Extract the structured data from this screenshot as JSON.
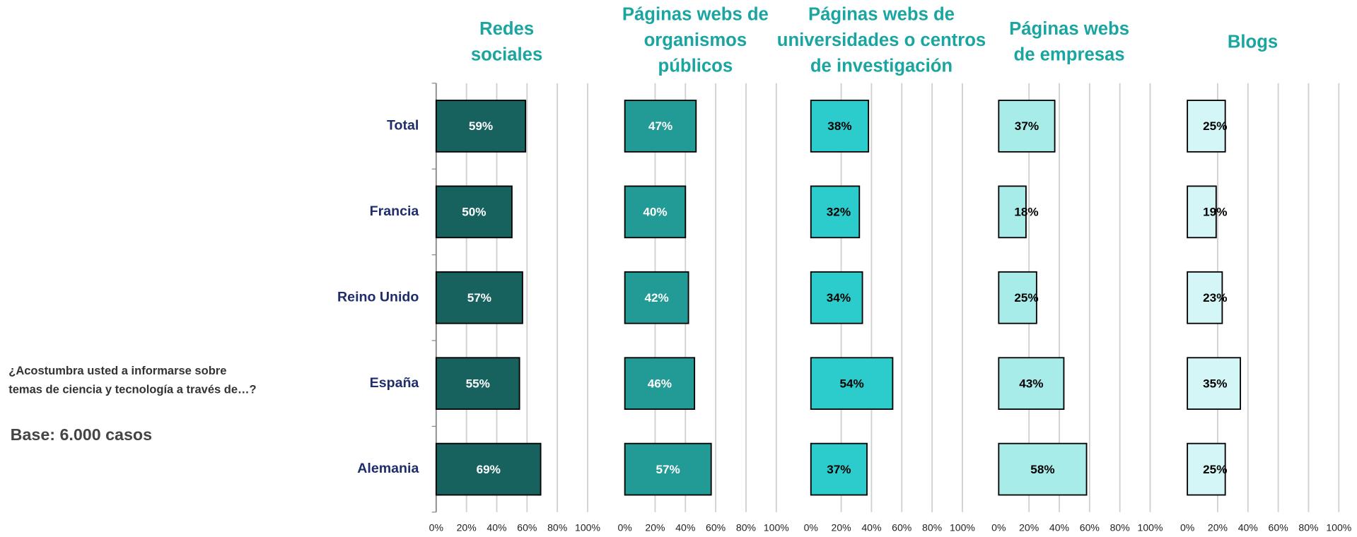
{
  "question": [
    "¿Acostumbra usted a informarse sobre",
    "temas de ciencia y tecnología a través de…?"
  ],
  "base": "Base: 6.000 casos",
  "chart_data": [
    {
      "type": "barh",
      "title": [
        "Redes",
        "sociales"
      ],
      "categories": [
        "Total",
        "Francia",
        "Reino Unido",
        "España",
        "Alemania"
      ],
      "values": [
        59,
        50,
        57,
        55,
        69
      ],
      "value_labels": [
        "59%",
        "50%",
        "57%",
        "55%",
        "69%"
      ],
      "color": "#17615f",
      "label_color": "#ffffff",
      "xlim": [
        0,
        100
      ],
      "xticks": [
        {
          "value": 0,
          "label": "0%"
        },
        {
          "value": 20,
          "label": "20%"
        },
        {
          "value": 40,
          "label": "40%"
        },
        {
          "value": 60,
          "label": "60%"
        },
        {
          "value": 80,
          "label": "80%"
        },
        {
          "value": 100,
          "label": "100%"
        }
      ],
      "grid": true
    },
    {
      "type": "barh",
      "title": [
        "Páginas webs de",
        "organismos",
        "públicos"
      ],
      "values": [
        47,
        40,
        42,
        46,
        57
      ],
      "value_labels": [
        "47%",
        "40%",
        "42%",
        "46%",
        "57%"
      ],
      "color": "#229a96",
      "label_color": "#ffffff",
      "xlim": [
        0,
        100
      ],
      "xticks": [
        {
          "value": 0,
          "label": "0%"
        },
        {
          "value": 20,
          "label": "20%"
        },
        {
          "value": 40,
          "label": "40%"
        },
        {
          "value": 60,
          "label": "60%"
        },
        {
          "value": 80,
          "label": "80%"
        },
        {
          "value": 100,
          "label": "100%"
        }
      ],
      "grid": true
    },
    {
      "type": "barh",
      "title": [
        "Páginas webs de",
        "universidades o centros",
        "de investigación"
      ],
      "values": [
        38,
        32,
        34,
        54,
        37
      ],
      "value_labels": [
        "38%",
        "32%",
        "34%",
        "54%",
        "37%"
      ],
      "color": "#2ccccc",
      "label_color": "#000000",
      "xlim": [
        0,
        100
      ],
      "xticks": [
        {
          "value": 0,
          "label": "0%"
        },
        {
          "value": 20,
          "label": "20%"
        },
        {
          "value": 40,
          "label": "40%"
        },
        {
          "value": 60,
          "label": "60%"
        },
        {
          "value": 80,
          "label": "80%"
        },
        {
          "value": 100,
          "label": "100%"
        }
      ],
      "grid": true
    },
    {
      "type": "barh",
      "title": [
        "Páginas webs",
        "de empresas"
      ],
      "values": [
        37,
        18,
        25,
        43,
        58
      ],
      "value_labels": [
        "37%",
        "18%",
        "25%",
        "43%",
        "58%"
      ],
      "color": "#a8ecea",
      "label_color": "#000000",
      "xlim": [
        0,
        100
      ],
      "xticks": [
        {
          "value": 0,
          "label": "0%"
        },
        {
          "value": 20,
          "label": "20%"
        },
        {
          "value": 40,
          "label": "40%"
        },
        {
          "value": 60,
          "label": "60%"
        },
        {
          "value": 80,
          "label": "80%"
        },
        {
          "value": 100,
          "label": "100%"
        }
      ],
      "grid": true
    },
    {
      "type": "barh",
      "title": [
        "Blogs"
      ],
      "values": [
        25,
        19,
        23,
        35,
        25
      ],
      "value_labels": [
        "25%",
        "19%",
        "23%",
        "35%",
        "25%"
      ],
      "color": "#d5f6f6",
      "label_color": "#000000",
      "xlim": [
        0,
        100
      ],
      "xticks": [
        {
          "value": 0,
          "label": "0%"
        },
        {
          "value": 20,
          "label": "20%"
        },
        {
          "value": 40,
          "label": "40%"
        },
        {
          "value": 60,
          "label": "60%"
        },
        {
          "value": 80,
          "label": "80%"
        },
        {
          "value": 100,
          "label": "100%"
        }
      ],
      "grid": true
    }
  ]
}
